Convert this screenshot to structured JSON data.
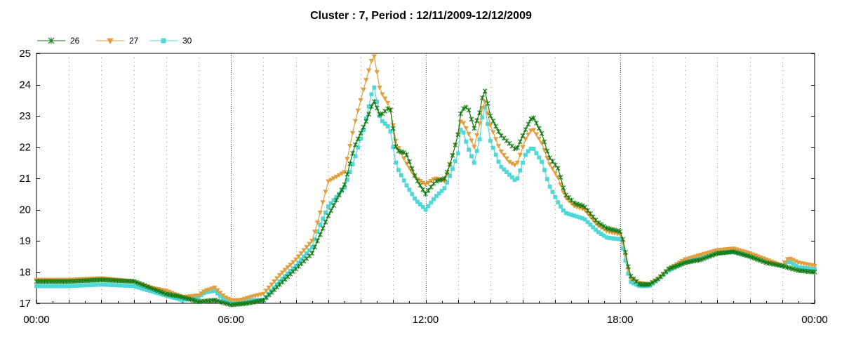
{
  "chart_data": {
    "type": "line",
    "title": "Cluster : 7, Period : 12/11/2009-12/12/2009",
    "xlabel": "",
    "ylabel": "",
    "ylim": [
      17,
      25
    ],
    "xlim": [
      0,
      24
    ],
    "x_ticks": [
      {
        "x": 0,
        "label": "00:00"
      },
      {
        "x": 6,
        "label": "06:00"
      },
      {
        "x": 12,
        "label": "12:00"
      },
      {
        "x": 18,
        "label": "18:00"
      },
      {
        "x": 24,
        "label": "00:00"
      }
    ],
    "y_ticks": [
      17,
      18,
      19,
      20,
      21,
      22,
      23,
      24,
      25
    ],
    "grid": true,
    "legend_position": "top-left",
    "series": [
      {
        "name": "26",
        "color": "#137a13",
        "marker": "star",
        "points": [
          [
            0,
            17.7
          ],
          [
            1,
            17.7
          ],
          [
            2,
            17.75
          ],
          [
            3,
            17.7
          ],
          [
            3.5,
            17.5
          ],
          [
            4,
            17.3
          ],
          [
            4.5,
            17.2
          ],
          [
            5,
            17.05
          ],
          [
            5.5,
            17.1
          ],
          [
            6,
            16.95
          ],
          [
            6.5,
            17.0
          ],
          [
            7,
            17.1
          ],
          [
            7.5,
            17.6
          ],
          [
            8,
            18.1
          ],
          [
            8.5,
            18.6
          ],
          [
            9,
            19.8
          ],
          [
            9.5,
            20.8
          ],
          [
            9.8,
            22.0
          ],
          [
            10.2,
            22.9
          ],
          [
            10.4,
            23.5
          ],
          [
            10.6,
            23.0
          ],
          [
            10.9,
            23.3
          ],
          [
            11.1,
            21.9
          ],
          [
            11.4,
            21.8
          ],
          [
            11.7,
            21.0
          ],
          [
            12,
            20.5
          ],
          [
            12.3,
            20.9
          ],
          [
            12.6,
            21.0
          ],
          [
            12.8,
            21.6
          ],
          [
            13.0,
            22.4
          ],
          [
            13.1,
            23.2
          ],
          [
            13.3,
            23.3
          ],
          [
            13.5,
            22.6
          ],
          [
            13.7,
            23.2
          ],
          [
            13.8,
            23.95
          ],
          [
            14.0,
            23.0
          ],
          [
            14.3,
            22.4
          ],
          [
            14.6,
            22.1
          ],
          [
            14.8,
            21.9
          ],
          [
            15.1,
            22.6
          ],
          [
            15.3,
            23.0
          ],
          [
            15.6,
            22.4
          ],
          [
            15.8,
            21.7
          ],
          [
            16.1,
            21.3
          ],
          [
            16.3,
            20.5
          ],
          [
            16.6,
            20.2
          ],
          [
            16.9,
            20.1
          ],
          [
            17.3,
            19.6
          ],
          [
            17.6,
            19.4
          ],
          [
            18.0,
            19.3
          ],
          [
            18.1,
            19.0
          ],
          [
            18.3,
            17.9
          ],
          [
            18.6,
            17.6
          ],
          [
            18.9,
            17.6
          ],
          [
            19.2,
            17.8
          ],
          [
            19.5,
            18.1
          ],
          [
            20,
            18.3
          ],
          [
            20.5,
            18.4
          ],
          [
            21,
            18.6
          ],
          [
            21.5,
            18.65
          ],
          [
            22,
            18.5
          ],
          [
            22.5,
            18.3
          ],
          [
            23,
            18.2
          ],
          [
            23.5,
            18.05
          ],
          [
            24,
            18.0
          ]
        ]
      },
      {
        "name": "27",
        "color": "#e0a040",
        "marker": "triangle",
        "points": [
          [
            0,
            17.75
          ],
          [
            1,
            17.75
          ],
          [
            2,
            17.8
          ],
          [
            3,
            17.7
          ],
          [
            3.5,
            17.5
          ],
          [
            4,
            17.4
          ],
          [
            4.5,
            17.2
          ],
          [
            5,
            17.25
          ],
          [
            5.2,
            17.4
          ],
          [
            5.5,
            17.5
          ],
          [
            5.8,
            17.2
          ],
          [
            6,
            17.1
          ],
          [
            6.3,
            17.1
          ],
          [
            6.6,
            17.2
          ],
          [
            7,
            17.3
          ],
          [
            7.5,
            17.9
          ],
          [
            8,
            18.4
          ],
          [
            8.5,
            19.0
          ],
          [
            8.7,
            19.7
          ],
          [
            9,
            20.9
          ],
          [
            9.5,
            21.2
          ],
          [
            9.8,
            22.7
          ],
          [
            10.1,
            23.9
          ],
          [
            10.4,
            25.0
          ],
          [
            10.6,
            23.8
          ],
          [
            10.9,
            23.3
          ],
          [
            11.1,
            22.1
          ],
          [
            11.4,
            21.5
          ],
          [
            11.7,
            21.0
          ],
          [
            12,
            20.8
          ],
          [
            12.3,
            21.0
          ],
          [
            12.6,
            20.9
          ],
          [
            12.8,
            21.6
          ],
          [
            13.0,
            22.4
          ],
          [
            13.1,
            22.9
          ],
          [
            13.3,
            22.5
          ],
          [
            13.5,
            22.0
          ],
          [
            13.7,
            22.9
          ],
          [
            13.8,
            23.6
          ],
          [
            14.0,
            22.7
          ],
          [
            14.3,
            21.9
          ],
          [
            14.6,
            21.5
          ],
          [
            14.8,
            21.4
          ],
          [
            15.1,
            22.3
          ],
          [
            15.3,
            22.6
          ],
          [
            15.6,
            22.1
          ],
          [
            15.8,
            21.5
          ],
          [
            16.1,
            21.0
          ],
          [
            16.3,
            20.4
          ],
          [
            16.6,
            20.1
          ],
          [
            16.9,
            20.0
          ],
          [
            17.3,
            19.5
          ],
          [
            17.6,
            19.3
          ],
          [
            18.0,
            19.2
          ],
          [
            18.1,
            18.9
          ],
          [
            18.3,
            17.8
          ],
          [
            18.6,
            17.65
          ],
          [
            18.9,
            17.6
          ],
          [
            19.2,
            17.8
          ],
          [
            19.5,
            18.1
          ],
          [
            20,
            18.4
          ],
          [
            20.5,
            18.55
          ],
          [
            21,
            18.7
          ],
          [
            21.5,
            18.75
          ],
          [
            22,
            18.6
          ],
          [
            22.5,
            18.4
          ],
          [
            23,
            18.2
          ],
          [
            23.2,
            18.45
          ],
          [
            23.5,
            18.3
          ],
          [
            24,
            18.2
          ]
        ]
      },
      {
        "name": "30",
        "color": "#50d8d8",
        "marker": "square",
        "points": [
          [
            0,
            17.55
          ],
          [
            1,
            17.55
          ],
          [
            2,
            17.6
          ],
          [
            3,
            17.55
          ],
          [
            3.5,
            17.4
          ],
          [
            4,
            17.25
          ],
          [
            4.5,
            17.1
          ],
          [
            5,
            17.2
          ],
          [
            5.2,
            17.35
          ],
          [
            5.5,
            17.4
          ],
          [
            5.8,
            17.1
          ],
          [
            6,
            17.05
          ],
          [
            6.3,
            17.0
          ],
          [
            6.6,
            17.1
          ],
          [
            7,
            17.1
          ],
          [
            7.5,
            17.7
          ],
          [
            8,
            18.2
          ],
          [
            8.5,
            18.8
          ],
          [
            8.7,
            19.4
          ],
          [
            9,
            20.1
          ],
          [
            9.5,
            20.7
          ],
          [
            9.8,
            21.6
          ],
          [
            10.1,
            22.6
          ],
          [
            10.4,
            24.0
          ],
          [
            10.6,
            22.9
          ],
          [
            10.9,
            22.6
          ],
          [
            11.1,
            21.4
          ],
          [
            11.4,
            20.8
          ],
          [
            11.7,
            20.3
          ],
          [
            12,
            20.0
          ],
          [
            12.3,
            20.4
          ],
          [
            12.6,
            20.7
          ],
          [
            12.8,
            21.2
          ],
          [
            13.0,
            21.8
          ],
          [
            13.1,
            22.7
          ],
          [
            13.3,
            22.0
          ],
          [
            13.5,
            21.5
          ],
          [
            13.7,
            22.4
          ],
          [
            13.8,
            23.5
          ],
          [
            14.0,
            22.2
          ],
          [
            14.3,
            21.4
          ],
          [
            14.6,
            21.1
          ],
          [
            14.8,
            20.9
          ],
          [
            15.1,
            21.8
          ],
          [
            15.3,
            22.0
          ],
          [
            15.6,
            21.5
          ],
          [
            15.8,
            20.8
          ],
          [
            16.1,
            20.2
          ],
          [
            16.3,
            19.9
          ],
          [
            16.6,
            19.8
          ],
          [
            16.9,
            19.7
          ],
          [
            17.3,
            19.3
          ],
          [
            17.6,
            19.1
          ],
          [
            18.0,
            19.05
          ],
          [
            18.1,
            18.7
          ],
          [
            18.3,
            17.7
          ],
          [
            18.6,
            17.55
          ],
          [
            18.9,
            17.55
          ],
          [
            19.2,
            17.8
          ],
          [
            19.5,
            18.05
          ],
          [
            20,
            18.3
          ],
          [
            20.5,
            18.45
          ],
          [
            21,
            18.6
          ],
          [
            21.5,
            18.65
          ],
          [
            22,
            18.5
          ],
          [
            22.5,
            18.35
          ],
          [
            23,
            18.2
          ],
          [
            23.2,
            18.35
          ],
          [
            23.5,
            18.15
          ],
          [
            24,
            18.1
          ]
        ]
      }
    ]
  }
}
